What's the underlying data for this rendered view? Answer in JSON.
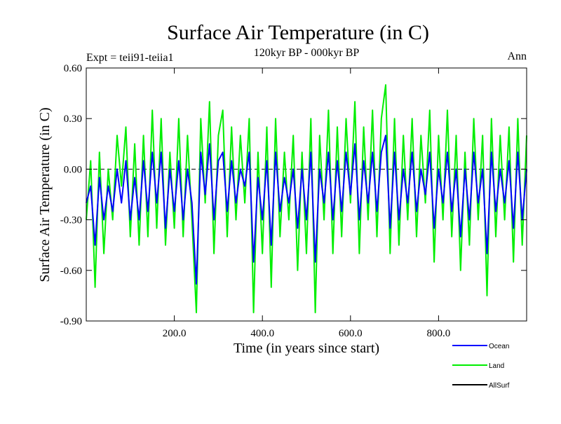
{
  "chart_data": {
    "type": "line",
    "title": "Surface Air Temperature (in C)",
    "subtitle": "120kyr BP - 000kyr BP",
    "left_annotation": "Expt = teii91-teiia1",
    "right_annotation": "Ann",
    "xlabel": "Time (in years since start)",
    "ylabel": "Surface Air Temperature (in C)",
    "xlim": [
      0,
      1000
    ],
    "ylim": [
      -0.9,
      0.6
    ],
    "x_ticks": [
      {
        "value": 200,
        "label": "200.0"
      },
      {
        "value": 400,
        "label": "400.0"
      },
      {
        "value": 600,
        "label": "600.0"
      },
      {
        "value": 800,
        "label": "800.0"
      }
    ],
    "y_ticks": [
      {
        "value": 0.6,
        "label": "0.60"
      },
      {
        "value": 0.3,
        "label": "0.30"
      },
      {
        "value": 0.0,
        "label": "0.00"
      },
      {
        "value": -0.3,
        "label": "-0.30"
      },
      {
        "value": -0.6,
        "label": "-0.60"
      },
      {
        "value": -0.9,
        "label": "-0.90"
      }
    ],
    "zero_line": true,
    "grid": false,
    "legend_position": "bottom-right",
    "series": [
      {
        "name": "Land",
        "color": "#00ee00",
        "x": [
          0,
          10,
          20,
          30,
          40,
          50,
          60,
          70,
          80,
          90,
          100,
          110,
          120,
          130,
          140,
          150,
          160,
          170,
          180,
          190,
          200,
          210,
          220,
          230,
          240,
          250,
          260,
          270,
          280,
          290,
          300,
          310,
          320,
          330,
          340,
          350,
          360,
          370,
          380,
          390,
          400,
          410,
          420,
          430,
          440,
          450,
          460,
          470,
          480,
          490,
          500,
          510,
          520,
          530,
          540,
          550,
          560,
          570,
          580,
          590,
          600,
          610,
          620,
          630,
          640,
          650,
          660,
          670,
          680,
          690,
          700,
          710,
          720,
          730,
          740,
          750,
          760,
          770,
          780,
          790,
          800,
          810,
          820,
          830,
          840,
          850,
          860,
          870,
          880,
          890,
          900,
          910,
          920,
          930,
          940,
          950,
          960,
          970,
          980,
          990,
          1000
        ],
        "values": [
          -0.3,
          0.05,
          -0.7,
          0.1,
          -0.5,
          0.0,
          -0.3,
          0.2,
          -0.1,
          0.25,
          -0.4,
          0.15,
          -0.45,
          0.2,
          -0.4,
          0.35,
          -0.35,
          0.3,
          -0.45,
          0.1,
          -0.35,
          0.3,
          -0.4,
          0.2,
          -0.3,
          -0.85,
          0.3,
          -0.2,
          0.4,
          -0.5,
          0.2,
          0.35,
          -0.4,
          0.25,
          -0.3,
          0.2,
          -0.2,
          0.3,
          -0.85,
          0.1,
          -0.5,
          0.25,
          -0.7,
          0.3,
          -0.4,
          0.1,
          -0.3,
          0.2,
          -0.6,
          0.1,
          -0.5,
          0.3,
          -0.85,
          0.2,
          -0.3,
          0.35,
          -0.5,
          0.25,
          -0.4,
          0.3,
          -0.2,
          0.4,
          -0.5,
          0.25,
          -0.3,
          0.35,
          -0.4,
          0.3,
          0.5,
          -0.5,
          0.3,
          -0.45,
          0.2,
          -0.3,
          0.3,
          -0.4,
          0.2,
          -0.2,
          0.35,
          -0.55,
          0.2,
          -0.3,
          0.35,
          -0.4,
          0.2,
          -0.6,
          0.1,
          -0.45,
          0.3,
          -0.3,
          0.2,
          -0.75,
          0.3,
          -0.4,
          0.2,
          -0.3,
          0.25,
          -0.55,
          0.3,
          -0.45,
          0.2
        ]
      },
      {
        "name": "Ocean",
        "color": "#0000ff",
        "x": [
          0,
          10,
          20,
          30,
          40,
          50,
          60,
          70,
          80,
          90,
          100,
          110,
          120,
          130,
          140,
          150,
          160,
          170,
          180,
          190,
          200,
          210,
          220,
          230,
          240,
          250,
          260,
          270,
          280,
          290,
          300,
          310,
          320,
          330,
          340,
          350,
          360,
          370,
          380,
          390,
          400,
          410,
          420,
          430,
          440,
          450,
          460,
          470,
          480,
          490,
          500,
          510,
          520,
          530,
          540,
          550,
          560,
          570,
          580,
          590,
          600,
          610,
          620,
          630,
          640,
          650,
          660,
          670,
          680,
          690,
          700,
          710,
          720,
          730,
          740,
          750,
          760,
          770,
          780,
          790,
          800,
          810,
          820,
          830,
          840,
          850,
          860,
          870,
          880,
          890,
          900,
          910,
          920,
          930,
          940,
          950,
          960,
          970,
          980,
          990,
          1000
        ],
        "values": [
          -0.2,
          -0.1,
          -0.45,
          -0.05,
          -0.3,
          -0.1,
          -0.25,
          0.0,
          -0.2,
          0.05,
          -0.3,
          -0.05,
          -0.3,
          0.05,
          -0.25,
          0.1,
          -0.2,
          0.1,
          -0.35,
          0.0,
          -0.25,
          0.05,
          -0.3,
          0.0,
          -0.2,
          -0.68,
          0.1,
          -0.15,
          0.15,
          -0.3,
          0.05,
          0.1,
          -0.25,
          0.05,
          -0.2,
          0.0,
          -0.1,
          0.1,
          -0.55,
          -0.05,
          -0.3,
          0.05,
          -0.45,
          0.1,
          -0.25,
          -0.05,
          -0.2,
          0.0,
          -0.35,
          0.0,
          -0.3,
          0.1,
          -0.55,
          0.0,
          -0.2,
          0.1,
          -0.3,
          0.05,
          -0.25,
          0.1,
          -0.15,
          0.15,
          -0.3,
          0.05,
          -0.2,
          0.1,
          -0.25,
          0.1,
          0.2,
          -0.35,
          0.1,
          -0.3,
          0.0,
          -0.2,
          0.1,
          -0.25,
          0.0,
          -0.15,
          0.1,
          -0.35,
          0.0,
          -0.2,
          0.1,
          -0.25,
          0.0,
          -0.4,
          0.0,
          -0.3,
          0.1,
          -0.2,
          0.0,
          -0.5,
          0.1,
          -0.25,
          0.0,
          -0.2,
          0.05,
          -0.35,
          0.1,
          -0.3,
          0.0
        ]
      }
    ],
    "legend": [
      {
        "name": "Ocean",
        "color": "#0000ff"
      },
      {
        "name": "Land",
        "color": "#00ee00"
      },
      {
        "name": "AllSurf",
        "color": "#000000"
      }
    ]
  }
}
